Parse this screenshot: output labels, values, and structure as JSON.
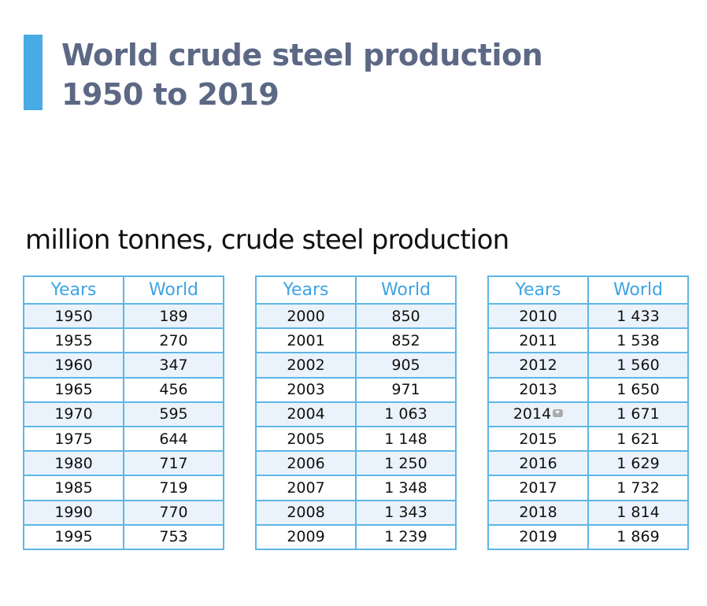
{
  "chart_data": {
    "type": "table",
    "title": "World crude steel production 1950 to 2019",
    "subtitle": "million tonnes, crude steel production",
    "columns": [
      "Years",
      "World"
    ],
    "x": [
      "1950",
      "1955",
      "1960",
      "1965",
      "1970",
      "1975",
      "1980",
      "1985",
      "1990",
      "1995",
      "2000",
      "2001",
      "2002",
      "2003",
      "2004",
      "2005",
      "2006",
      "2007",
      "2008",
      "2009",
      "2010",
      "2011",
      "2012",
      "2013",
      "2014",
      "2015",
      "2016",
      "2017",
      "2018",
      "2019"
    ],
    "values": [
      189,
      270,
      347,
      456,
      595,
      644,
      717,
      719,
      770,
      753,
      850,
      852,
      905,
      971,
      1063,
      1148,
      1250,
      1348,
      1343,
      1239,
      1433,
      1538,
      1560,
      1650,
      1671,
      1621,
      1629,
      1732,
      1814,
      1869
    ],
    "display_values": [
      "189",
      "270",
      "347",
      "456",
      "595",
      "644",
      "717",
      "719",
      "770",
      "753",
      "850",
      "852",
      "905",
      "971",
      "1 063",
      "1 148",
      "1 250",
      "1 348",
      "1 343",
      "1 239",
      "1 433",
      "1 538",
      "1 560",
      "1 650",
      "1 671",
      "1 621",
      "1 629",
      "1 732",
      "1 814",
      "1 869"
    ]
  },
  "colors": {
    "title": "#5c6884",
    "accent_bar": "#48abe3",
    "header_text": "#3ea4e2",
    "border": "#5eb6e6",
    "stripe": "#eaf3fb"
  },
  "icons": {
    "row_marker": "chevron-down-icon"
  }
}
